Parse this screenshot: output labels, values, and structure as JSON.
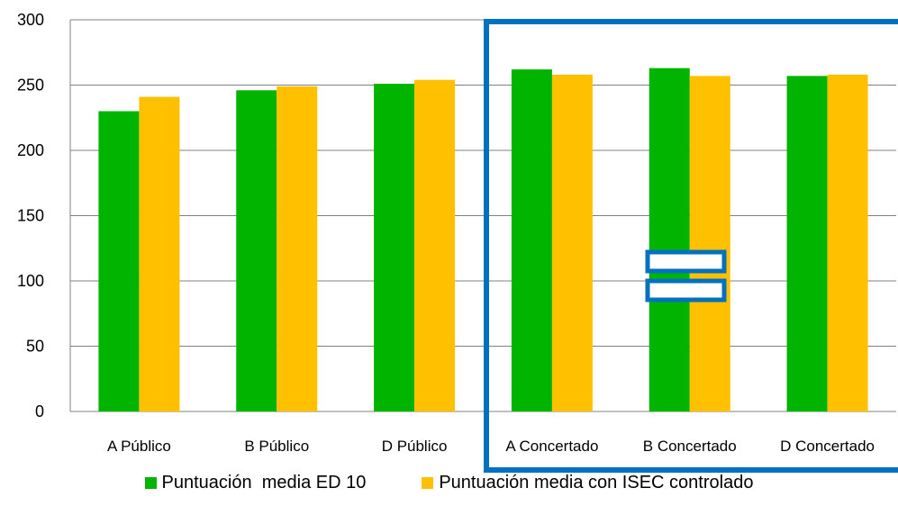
{
  "chart_data": {
    "type": "bar",
    "categories": [
      "A Público",
      "B Público",
      "D Público",
      "A Concertado",
      "B Concertado",
      "D Concertado"
    ],
    "series": [
      {
        "name": "Puntuación  media ED 10",
        "values": [
          230,
          246,
          251,
          262,
          263,
          257
        ],
        "color": "#00b400"
      },
      {
        "name": "Puntuación media con ISEC controlado",
        "values": [
          241,
          249,
          254,
          258,
          257,
          258
        ],
        "color": "#ffc000"
      }
    ],
    "ylim": [
      0,
      300
    ],
    "yticks": [
      0,
      50,
      100,
      150,
      200,
      250,
      300
    ],
    "grid": true,
    "legend_position": "bottom",
    "highlight_color": "#0070c0",
    "annotation_icon": "equals-sign-icon"
  }
}
